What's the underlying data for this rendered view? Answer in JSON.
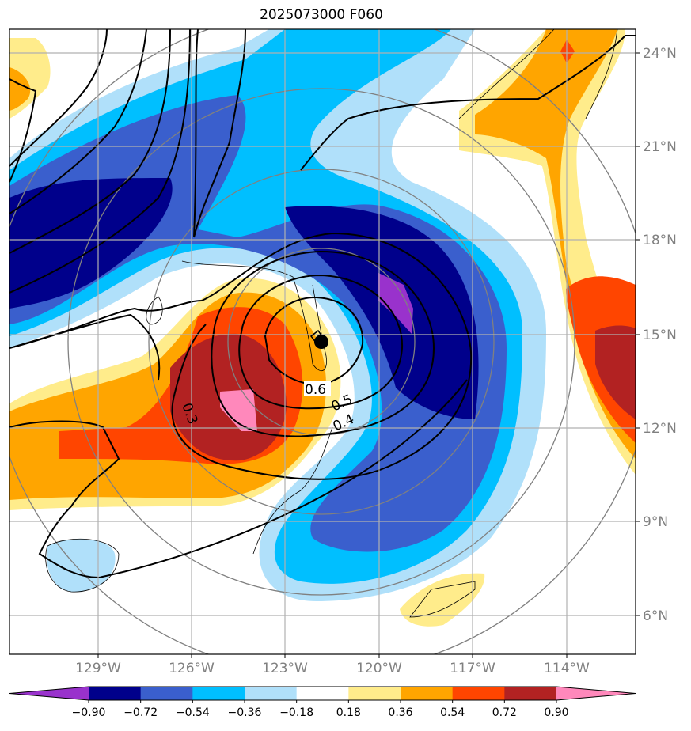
{
  "title": "2025073000 F060",
  "lat_labels": [
    "24°N",
    "21°N",
    "18°N",
    "15°N",
    "12°N",
    "9°N",
    "6°N"
  ],
  "lon_labels": [
    "129°W",
    "126°W",
    "123°W",
    "120°W",
    "117°W",
    "114°W"
  ],
  "colorbar": {
    "ticks": [
      "−0.90",
      "−0.72",
      "−0.54",
      "−0.36",
      "−0.18",
      "0.18",
      "0.36",
      "0.54",
      "0.72",
      "0.90"
    ],
    "colors": [
      "#9932cc",
      "#00008b",
      "#3a5fcd",
      "#00bfff",
      "#b0e0fa",
      "#ffffff",
      "#ffec8b",
      "#ffa500",
      "#ff4500",
      "#b22222",
      "#ff88bb"
    ]
  },
  "contour_labels": [
    "0.6",
    "0.5",
    "0.4",
    "0.3"
  ],
  "storm_marker": "storm-center"
}
